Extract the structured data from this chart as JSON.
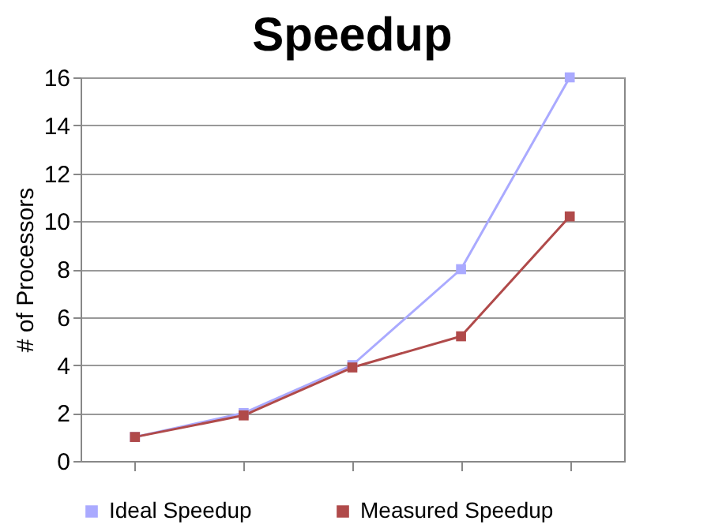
{
  "chart_data": {
    "type": "line",
    "title": "Speedup",
    "ylabel": "# of Processors",
    "categories": [
      null,
      null,
      null,
      null,
      null
    ],
    "series": [
      {
        "name": "Ideal Speedup",
        "color": "#aaaaff",
        "values": [
          1,
          2,
          4,
          8,
          16
        ]
      },
      {
        "name": "Measured Speedup",
        "color": "#b04a4a",
        "values": [
          1,
          1.9,
          3.9,
          5.2,
          10.2
        ]
      }
    ],
    "ylim": [
      0,
      16
    ],
    "yticks": [
      0,
      2,
      4,
      6,
      8,
      10,
      12,
      14,
      16
    ],
    "grid": "y",
    "legend": "bottom",
    "marker": "square",
    "line_style": "solid",
    "tick_labels": "y"
  }
}
